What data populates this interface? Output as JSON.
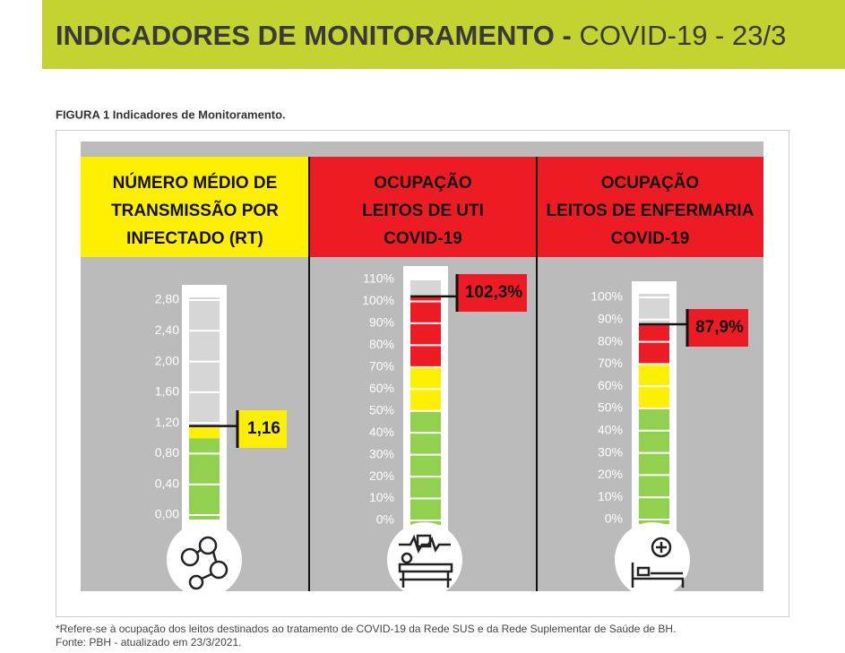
{
  "header": {
    "title_bold": "INDICADORES DE MONITORAMENTO -",
    "title_rest": "COVID-19 - 23/3"
  },
  "figure_caption": "FIGURA 1 Indicadores de Monitoramento.",
  "panels": [
    {
      "title_lines": [
        "NÚMERO MÉDIO DE",
        "TRANSMISSÃO POR",
        "INFECTADO (RT)"
      ],
      "header_color": "#ffef00",
      "ticks": [
        {
          "value": 0,
          "label": "0,00"
        },
        {
          "value": 0.4,
          "label": "0,40"
        },
        {
          "value": 0.8,
          "label": "0,80"
        },
        {
          "value": 1.2,
          "label": "1,20"
        },
        {
          "value": 1.6,
          "label": "1,60"
        },
        {
          "value": 2.0,
          "label": "2,00"
        },
        {
          "value": 2.4,
          "label": "2,40"
        },
        {
          "value": 2.8,
          "label": "2,80"
        }
      ],
      "value": 1.16,
      "value_label": "1,16",
      "label_color": "#ffef00",
      "zones": [
        {
          "limit": 1.0,
          "color": "#92d050"
        },
        {
          "limit": 1.2,
          "color": "#ffef00"
        }
      ]
    },
    {
      "title_lines": [
        "OCUPAÇÃO",
        "LEITOS DE UTI",
        "COVID-19"
      ],
      "header_color": "#ed1c24",
      "ticks": [
        {
          "value": 0,
          "label": "0%"
        },
        {
          "value": 10,
          "label": "10%"
        },
        {
          "value": 20,
          "label": "20%"
        },
        {
          "value": 30,
          "label": "30%"
        },
        {
          "value": 40,
          "label": "40%"
        },
        {
          "value": 50,
          "label": "50%"
        },
        {
          "value": 60,
          "label": "60%"
        },
        {
          "value": 70,
          "label": "70%"
        },
        {
          "value": 80,
          "label": "80%"
        },
        {
          "value": 90,
          "label": "90%"
        },
        {
          "value": 100,
          "label": "100%"
        },
        {
          "value": 110,
          "label": "110%"
        }
      ],
      "value": 102.3,
      "value_label": "102,3%",
      "label_color": "#ed1c24",
      "zones": [
        {
          "limit": 50,
          "color": "#92d050"
        },
        {
          "limit": 70,
          "color": "#ffef00"
        },
        {
          "limit": 110,
          "color": "#ed1c24"
        }
      ]
    },
    {
      "title_lines": [
        "OCUPAÇÃO",
        "LEITOS DE ENFERMARIA",
        "COVID-19"
      ],
      "header_color": "#ed1c24",
      "ticks": [
        {
          "value": 0,
          "label": "0%"
        },
        {
          "value": 10,
          "label": "10%"
        },
        {
          "value": 20,
          "label": "20%"
        },
        {
          "value": 30,
          "label": "30%"
        },
        {
          "value": 40,
          "label": "40%"
        },
        {
          "value": 50,
          "label": "50%"
        },
        {
          "value": 60,
          "label": "60%"
        },
        {
          "value": 70,
          "label": "70%"
        },
        {
          "value": 80,
          "label": "80%"
        },
        {
          "value": 90,
          "label": "90%"
        },
        {
          "value": 100,
          "label": "100%"
        }
      ],
      "value": 87.9,
      "value_label": "87,9%",
      "label_color": "#ed1c24",
      "zones": [
        {
          "limit": 50,
          "color": "#92d050"
        },
        {
          "limit": 70,
          "color": "#ffef00"
        },
        {
          "limit": 100,
          "color": "#ed1c24"
        }
      ]
    }
  ],
  "footnotes": [
    "*Refere-se à ocupação dos leitos destinados ao tratamento de COVID-19 da Rede SUS e da Rede Suplementar de Saúde de BH.",
    "Fonte: PBH - atualizado em 23/3/2021."
  ]
}
